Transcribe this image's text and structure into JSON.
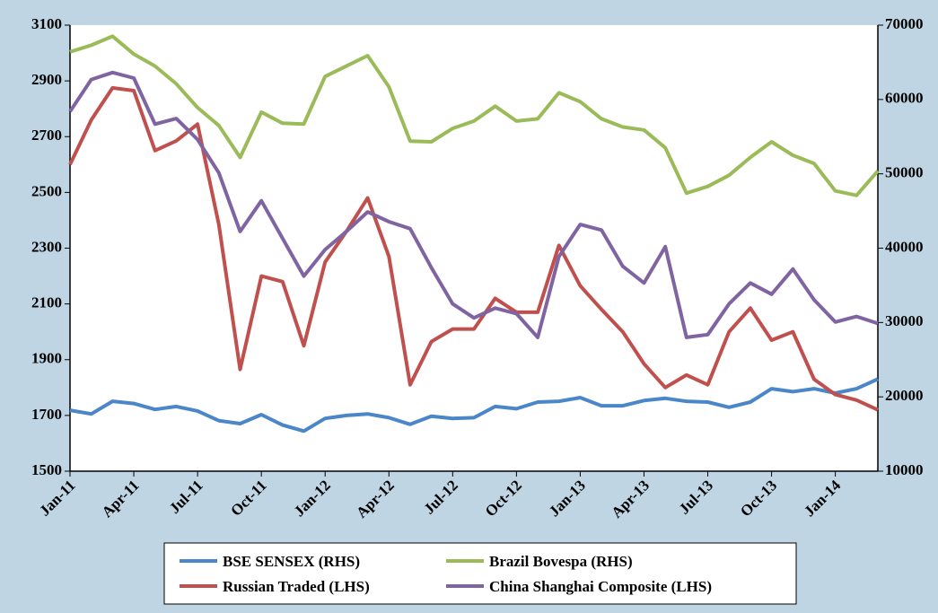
{
  "chart_data": {
    "type": "line",
    "categories": [
      "Jan-11",
      null,
      null,
      "Apr-11",
      null,
      null,
      "Jul-11",
      null,
      null,
      "Oct-11",
      null,
      null,
      "Jan-12",
      null,
      null,
      "Apr-12",
      null,
      null,
      "Jul-12",
      null,
      null,
      "Oct-12",
      null,
      null,
      "Jan-13",
      null,
      null,
      "Apr-13",
      null,
      null,
      "Jul-13",
      null,
      null,
      "Oct-13",
      null,
      null,
      "Jan-14",
      null,
      null
    ],
    "series": [
      {
        "name": "BSE SENSEX (RHS)",
        "color": "#4a86c8",
        "axis": "y2",
        "values": [
          18200,
          17700,
          19400,
          19100,
          18300,
          18700,
          18100,
          16800,
          16400,
          17600,
          16200,
          15400,
          17100,
          17500,
          17700,
          17200,
          16300,
          17400,
          17100,
          17200,
          18700,
          18400,
          19300,
          19400,
          19900,
          18800,
          18800,
          19500,
          19800,
          19400,
          19300,
          18600,
          19300,
          21100,
          20700,
          21100,
          20500,
          21100,
          22400
        ]
      },
      {
        "name": "Brazil Bovespa (RHS)",
        "color": "#9bbb59",
        "axis": "y2",
        "values": [
          66400,
          67300,
          68500,
          66100,
          64500,
          62100,
          58900,
          56500,
          52200,
          58300,
          56800,
          56700,
          63100,
          64500,
          65900,
          61700,
          54400,
          54300,
          56100,
          57100,
          59100,
          57100,
          57400,
          60900,
          59700,
          57400,
          56300,
          55900,
          53500,
          47400,
          48300,
          49800,
          52200,
          54300,
          52500,
          51400,
          47700,
          47100,
          50400
        ]
      },
      {
        "name": "Russian Traded (LHS)",
        "color": "#c0504d",
        "values": [
          2600,
          2760,
          2875,
          2865,
          2650,
          2685,
          2745,
          2385,
          1865,
          2200,
          2180,
          1950,
          2250,
          2360,
          2480,
          2270,
          1810,
          1965,
          2010,
          2010,
          2120,
          2070,
          2070,
          2310,
          2165,
          2080,
          2000,
          1885,
          1800,
          1845,
          1810,
          2000,
          2085,
          1970,
          2000,
          1830,
          1775,
          1755,
          1720
        ]
      },
      {
        "name": "China Shanghai Composite (LHS)",
        "color": "#8064a2",
        "values": [
          2790,
          2905,
          2930,
          2910,
          2745,
          2765,
          2690,
          2570,
          2360,
          2470,
          2335,
          2200,
          2295,
          2360,
          2430,
          2395,
          2370,
          2230,
          2100,
          2050,
          2085,
          2065,
          1980,
          2270,
          2385,
          2365,
          2235,
          2175,
          2305,
          1980,
          1990,
          2100,
          2175,
          2135,
          2225,
          2115,
          2035,
          2055,
          2030
        ]
      }
    ],
    "ylim": [
      1500,
      3100
    ],
    "yticks": [
      1500,
      1700,
      1900,
      2100,
      2300,
      2500,
      2700,
      2900,
      3100
    ],
    "y2lim": [
      10000,
      70000
    ],
    "y2ticks": [
      10000,
      20000,
      30000,
      40000,
      50000,
      60000,
      70000
    ],
    "grid": false,
    "legend": "bottom"
  }
}
